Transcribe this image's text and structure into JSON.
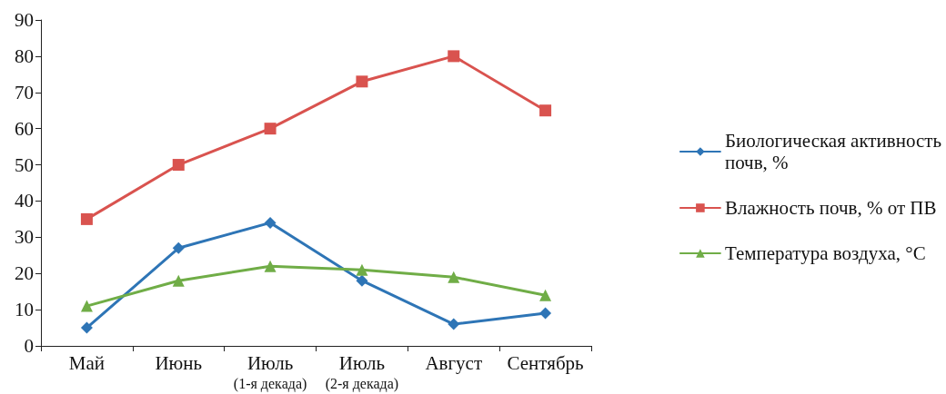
{
  "chart_data": {
    "type": "line",
    "categories": [
      "Май",
      "Июнь",
      "Июль\n(1-я декада)",
      "Июль\n(2-я декада)",
      "Август",
      "Сентябрь"
    ],
    "series": [
      {
        "name": "Биологическая активность\nпочв, %",
        "color": "#2e75b6",
        "marker": "diamond",
        "values": [
          5,
          27,
          34,
          18,
          6,
          9
        ]
      },
      {
        "name": "Влажность почв, % от ПВ",
        "color": "#d9534f",
        "marker": "square",
        "values": [
          35,
          50,
          60,
          73,
          80,
          65
        ]
      },
      {
        "name": "Температура воздуха, °С",
        "color": "#70ad47",
        "marker": "triangle",
        "values": [
          11,
          18,
          22,
          21,
          19,
          14
        ]
      }
    ],
    "ylim": [
      0,
      90
    ],
    "yticks": [
      0,
      10,
      20,
      30,
      40,
      50,
      60,
      70,
      80,
      90
    ],
    "grid": false,
    "legend": "right",
    "line_style": "solid"
  }
}
